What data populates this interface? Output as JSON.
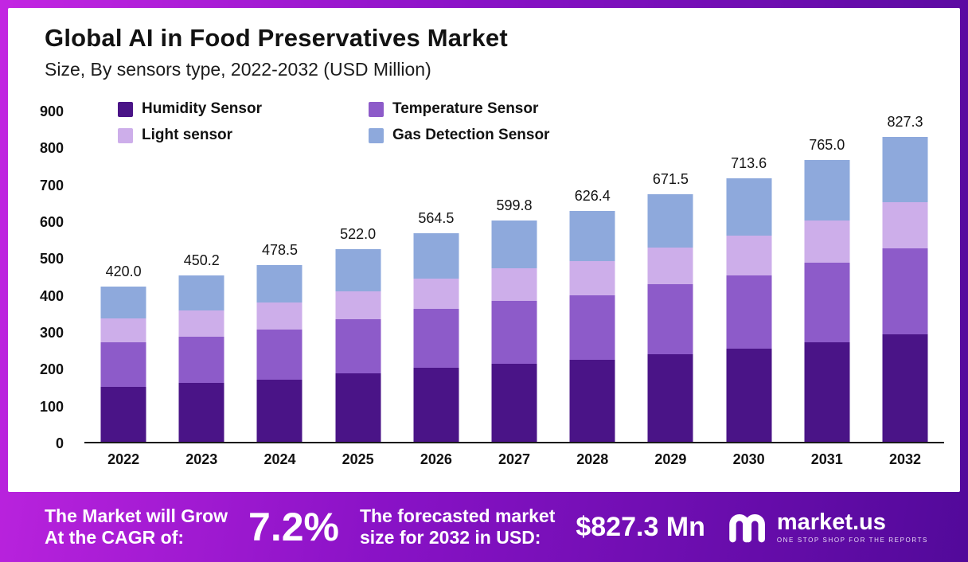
{
  "header": {
    "title": "Global AI in Food Preservatives Market",
    "subtitle": "Size, By sensors type, 2022-2032 (USD Million)"
  },
  "chart_data": {
    "type": "bar",
    "stacked": true,
    "title": "Global AI in Food Preservatives Market Size, By sensors type, 2022-2032 (USD Million)",
    "categories": [
      "2022",
      "2023",
      "2024",
      "2025",
      "2026",
      "2027",
      "2028",
      "2029",
      "2030",
      "2031",
      "2032"
    ],
    "series": [
      {
        "name": "Humidity Sensor",
        "color": "#4a1487",
        "values": [
          150,
          160,
          168,
          185,
          200,
          212,
          222,
          238,
          252,
          270,
          292
        ]
      },
      {
        "name": "Temperature Sensor",
        "color": "#8d5bc9",
        "values": [
          120,
          126,
          137,
          148,
          160,
          170,
          176,
          190,
          200,
          215,
          233
        ]
      },
      {
        "name": "Light sensor",
        "color": "#cdaeea",
        "values": [
          65,
          69.2,
          73.5,
          75,
          82,
          88,
          93,
          99,
          108,
          115,
          125
        ]
      },
      {
        "name": "Gas Detection Sensor",
        "color": "#8ea9dc",
        "values": [
          85,
          95,
          100,
          114,
          122.5,
          129.8,
          135.4,
          144.5,
          153.6,
          165,
          177.3
        ]
      }
    ],
    "totals": [
      420.0,
      450.2,
      478.5,
      522.0,
      564.5,
      599.8,
      626.4,
      671.5,
      713.6,
      765.0,
      827.3
    ],
    "total_labels": [
      "420.0",
      "450.2",
      "478.5",
      "522.0",
      "564.5",
      "599.8",
      "626.4",
      "671.5",
      "713.6",
      "765.0",
      "827.3"
    ],
    "ylim": [
      0,
      900
    ],
    "yticks": [
      0,
      100,
      200,
      300,
      400,
      500,
      600,
      700,
      800,
      900
    ],
    "grid": false,
    "legend_position": "top"
  },
  "footer": {
    "grow_line1": "The Market will Grow",
    "grow_line2": "At the CAGR of:",
    "cagr_value": "7.2%",
    "forecast_line1": "The forecasted market",
    "forecast_line2": "size for 2032 in USD:",
    "forecast_value": "$827.3 Mn",
    "brand_name": "market.us",
    "brand_tagline": "ONE STOP SHOP FOR THE REPORTS"
  }
}
